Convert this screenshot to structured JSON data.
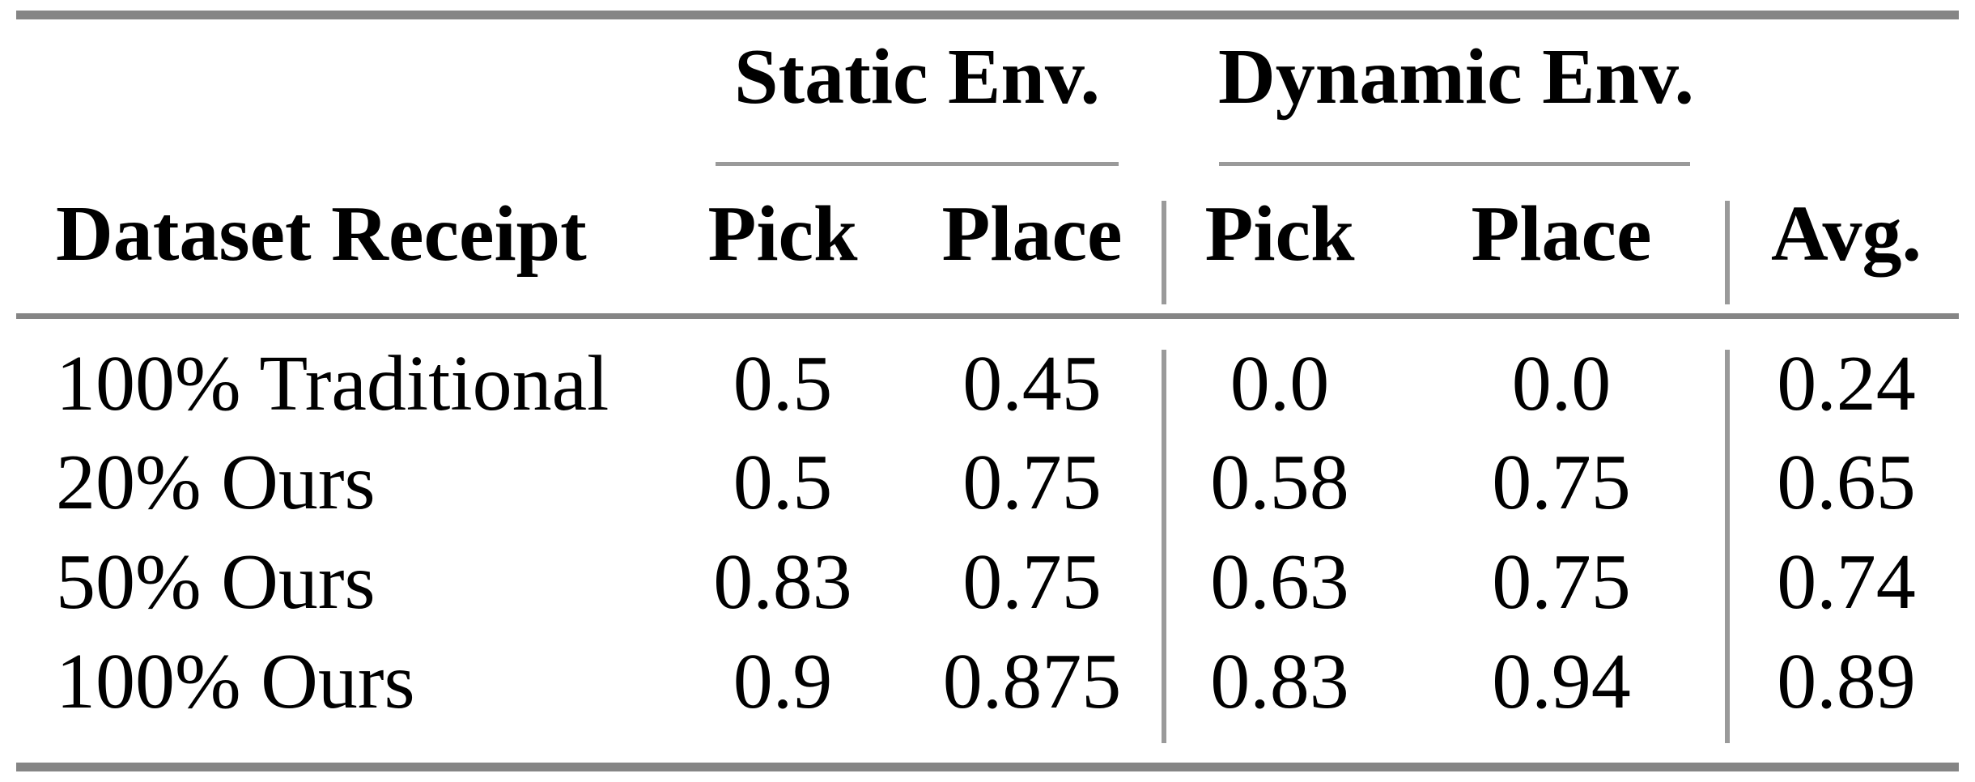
{
  "table": {
    "col_groups": {
      "static": "Static Env.",
      "dynamic": "Dynamic Env."
    },
    "columns": {
      "row_header": "Dataset Receipt",
      "static_pick": "Pick",
      "static_place": "Place",
      "dynamic_pick": "Pick",
      "dynamic_place": "Place",
      "avg": "Avg."
    },
    "rows": [
      {
        "label": "100% Traditional",
        "static_pick": "0.5",
        "static_place": "0.45",
        "dynamic_pick": "0.0",
        "dynamic_place": "0.0",
        "avg": "0.24"
      },
      {
        "label": "20% Ours",
        "static_pick": "0.5",
        "static_place": "0.75",
        "dynamic_pick": "0.58",
        "dynamic_place": "0.75",
        "avg": "0.65"
      },
      {
        "label": "50% Ours",
        "static_pick": "0.83",
        "static_place": "0.75",
        "dynamic_pick": "0.63",
        "dynamic_place": "0.75",
        "avg": "0.74"
      },
      {
        "label": "100% Ours",
        "static_pick": "0.9",
        "static_place": "0.875",
        "dynamic_pick": "0.83",
        "dynamic_place": "0.94",
        "avg": "0.89"
      }
    ],
    "colors": {
      "rule_heavy": "#858585",
      "rule_light": "#9a9a9a",
      "text": "#000000",
      "background": "#ffffff"
    }
  }
}
